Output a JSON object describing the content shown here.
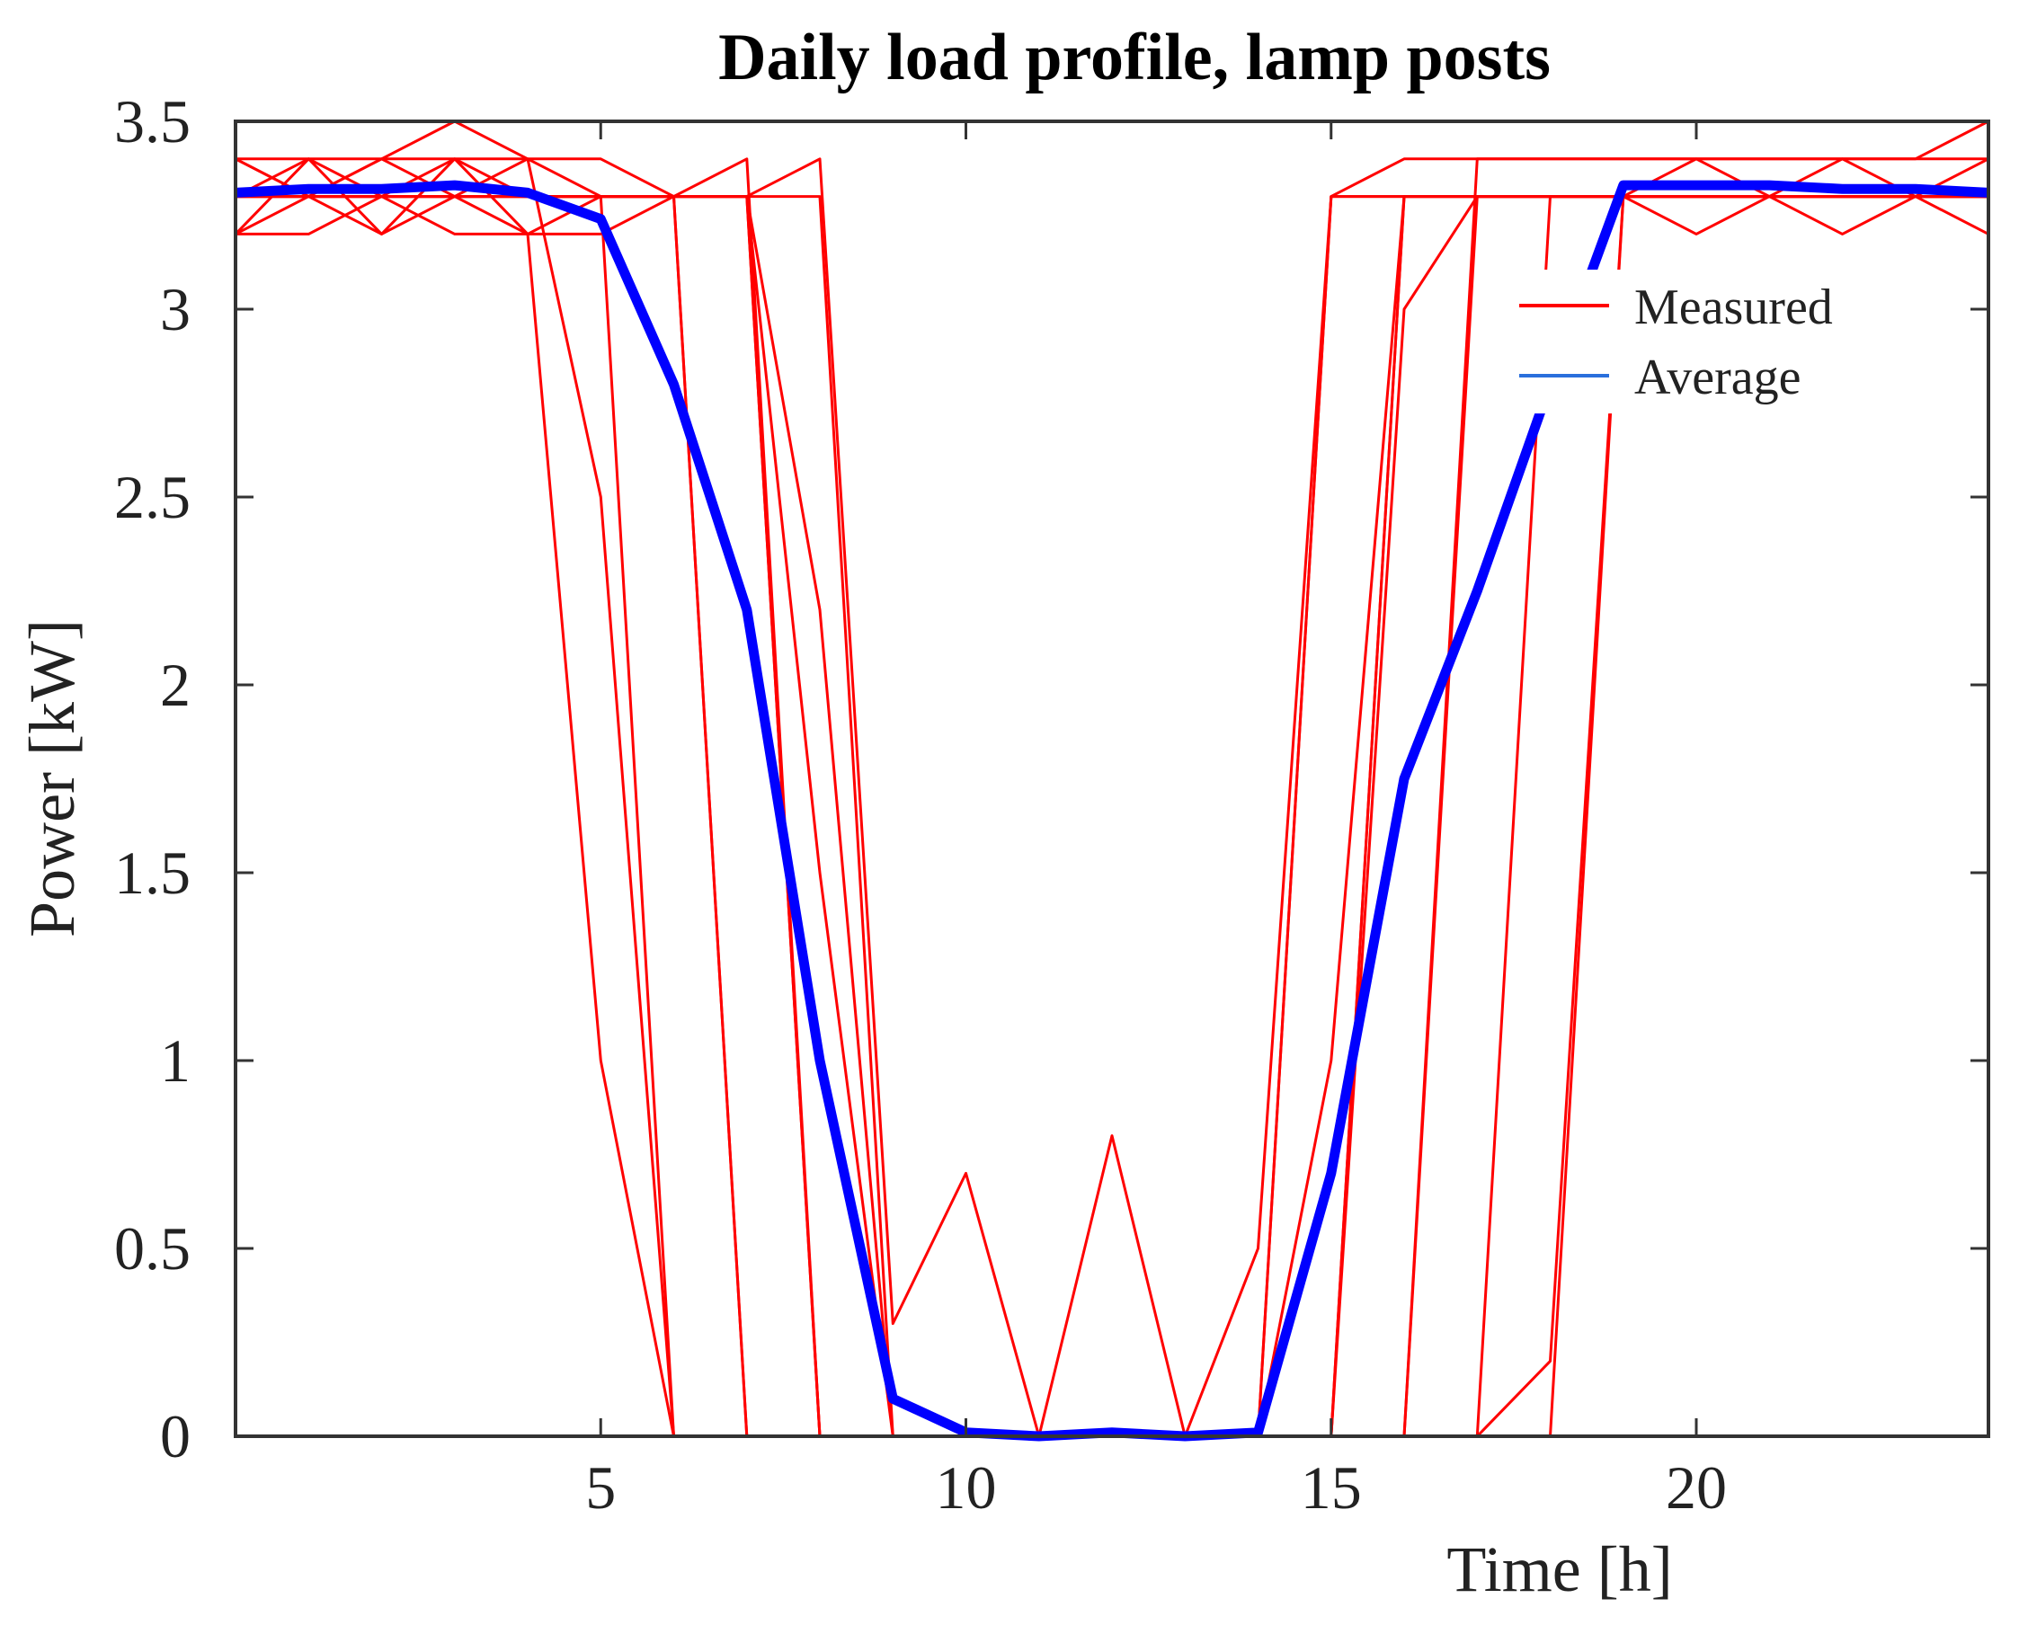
{
  "chart_data": {
    "type": "line",
    "title": "Daily load profile, lamp posts",
    "xlabel": "Time [h]",
    "ylabel": "Power [kW]",
    "xlim": [
      0,
      24
    ],
    "ylim": [
      0,
      3.5
    ],
    "xticks": [
      5,
      10,
      15,
      20
    ],
    "yticks": [
      0,
      0.5,
      1,
      1.5,
      2,
      2.5,
      3,
      3.5
    ],
    "ytick_labels": [
      "0",
      "0.5",
      "1",
      "1.5",
      "2",
      "2.5",
      "3",
      "3.5"
    ],
    "grid": false,
    "legend": {
      "location": "upper-right",
      "entries": [
        {
          "label": "Measured",
          "color": "#ff0000"
        },
        {
          "label": "Average",
          "color": "#2a6fdc"
        }
      ]
    },
    "colors": {
      "measured": "#ff0000",
      "average": "#0000ff",
      "legend_average": "#2a6fdc",
      "axes": "#333333"
    },
    "x": [
      0,
      1,
      2,
      3,
      4,
      5,
      6,
      7,
      8,
      9,
      10,
      11,
      12,
      13,
      14,
      15,
      16,
      17,
      18,
      19,
      20,
      21,
      22,
      23,
      24
    ],
    "series": [
      {
        "name": "Average",
        "values": [
          3.31,
          3.32,
          3.32,
          3.33,
          3.31,
          3.24,
          2.8,
          2.2,
          1.0,
          0.1,
          0.01,
          0.0,
          0.01,
          0.0,
          0.01,
          0.7,
          1.75,
          2.25,
          2.8,
          3.33,
          3.33,
          3.33,
          3.32,
          3.32,
          3.31
        ]
      },
      {
        "name": "Measured",
        "values": [
          3.3,
          3.3,
          3.3,
          3.3,
          3.3,
          3.3,
          3.3,
          3.3,
          3.3,
          0.0,
          0.0,
          0.0,
          0.0,
          0.0,
          0.0,
          3.3,
          3.3,
          3.3,
          3.3,
          3.3,
          3.3,
          3.3,
          3.3,
          3.3,
          3.3
        ]
      },
      {
        "name": "Measured",
        "values": [
          3.2,
          3.3,
          3.2,
          3.3,
          3.2,
          3.3,
          0.0,
          0.0,
          0.0,
          0.0,
          0.0,
          0.0,
          0.0,
          0.0,
          0.0,
          0.0,
          0.0,
          0.0,
          0.0,
          3.3,
          3.2,
          3.3,
          3.2,
          3.3,
          3.2
        ]
      },
      {
        "name": "Measured",
        "values": [
          3.4,
          3.3,
          3.4,
          3.5,
          3.4,
          3.4,
          3.3,
          0.0,
          0.0,
          0.0,
          0.0,
          0.0,
          0.0,
          0.0,
          0.0,
          3.3,
          3.4,
          3.4,
          3.4,
          3.4,
          3.4,
          3.4,
          3.4,
          3.4,
          3.5
        ]
      },
      {
        "name": "Measured",
        "values": [
          3.3,
          3.4,
          3.3,
          3.4,
          3.3,
          3.3,
          3.3,
          3.4,
          0.0,
          0.0,
          0.0,
          0.0,
          0.0,
          0.0,
          0.0,
          0.0,
          3.3,
          3.3,
          3.3,
          3.3,
          3.3,
          3.3,
          3.3,
          3.3,
          3.3
        ]
      },
      {
        "name": "Measured",
        "values": [
          3.2,
          3.2,
          3.3,
          3.2,
          3.2,
          1.0,
          0.0,
          0.0,
          0.0,
          0.0,
          0.0,
          0.0,
          0.0,
          0.0,
          0.0,
          0.0,
          0.0,
          0.0,
          3.3,
          3.3,
          3.3,
          3.3,
          3.3,
          3.3,
          3.3
        ]
      },
      {
        "name": "Measured",
        "values": [
          3.4,
          3.4,
          3.4,
          3.4,
          3.4,
          2.5,
          0.0,
          0.0,
          0.0,
          0.0,
          0.0,
          0.0,
          0.0,
          0.0,
          0.0,
          0.0,
          0.0,
          3.4,
          3.4,
          3.4,
          3.4,
          3.4,
          3.4,
          3.4,
          3.4
        ]
      },
      {
        "name": "Measured",
        "values": [
          3.3,
          3.3,
          3.3,
          3.3,
          3.3,
          3.3,
          3.3,
          3.3,
          2.2,
          0.0,
          0.0,
          0.0,
          0.0,
          0.0,
          0.0,
          0.0,
          0.0,
          3.3,
          3.3,
          3.3,
          3.3,
          3.3,
          3.3,
          3.3,
          3.3
        ]
      },
      {
        "name": "Measured",
        "values": [
          3.3,
          3.3,
          3.3,
          3.3,
          3.3,
          3.3,
          3.3,
          3.3,
          3.4,
          0.3,
          0.7,
          0.0,
          0.0,
          0.0,
          0.0,
          1.0,
          3.3,
          3.3,
          3.3,
          3.3,
          3.3,
          3.3,
          3.3,
          3.3,
          3.3
        ]
      },
      {
        "name": "Measured",
        "values": [
          3.3,
          3.3,
          3.3,
          3.3,
          3.3,
          3.3,
          3.3,
          3.3,
          0.0,
          0.0,
          0.0,
          0.0,
          0.8,
          0.0,
          0.0,
          0.0,
          3.3,
          3.3,
          3.3,
          3.3,
          3.3,
          3.3,
          3.3,
          3.3,
          3.3
        ]
      },
      {
        "name": "Measured",
        "values": [
          3.3,
          3.3,
          3.3,
          3.3,
          3.3,
          3.3,
          3.3,
          0.0,
          0.0,
          0.0,
          0.0,
          0.0,
          0.0,
          0.0,
          0.5,
          3.3,
          3.3,
          3.3,
          3.3,
          3.3,
          3.3,
          3.3,
          3.3,
          3.3,
          3.3
        ]
      },
      {
        "name": "Measured",
        "values": [
          3.4,
          3.3,
          3.4,
          3.3,
          3.4,
          3.3,
          3.3,
          3.3,
          0.0,
          0.0,
          0.0,
          0.0,
          0.0,
          0.0,
          0.0,
          0.0,
          0.0,
          0.0,
          0.2,
          3.3,
          3.4,
          3.3,
          3.4,
          3.3,
          3.4
        ]
      },
      {
        "name": "Measured",
        "values": [
          3.2,
          3.4,
          3.2,
          3.4,
          3.2,
          3.2,
          3.3,
          3.3,
          1.5,
          0.0,
          0.0,
          0.0,
          0.0,
          0.0,
          0.0,
          0.0,
          3.0,
          3.3,
          3.3,
          3.3,
          3.3,
          3.3,
          3.3,
          3.3,
          3.3
        ]
      }
    ]
  }
}
